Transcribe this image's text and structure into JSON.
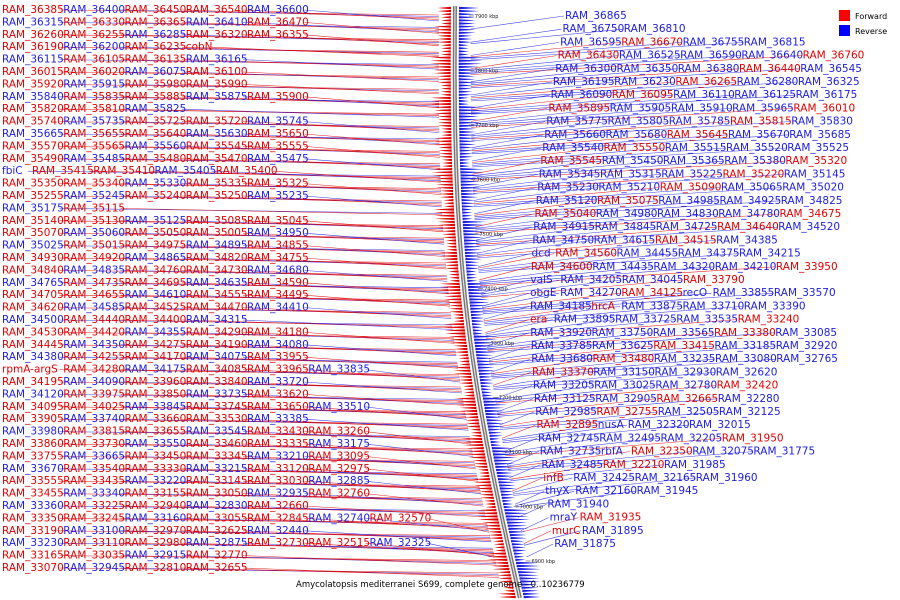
{
  "legend": {
    "items": [
      {
        "label": "Forward",
        "color": "#ff0000"
      },
      {
        "label": "Reverse",
        "color": "#0000ff"
      }
    ]
  },
  "caption": "Amycolatopsis mediterranei S699, complete genome - 0..10236779",
  "colors": {
    "forward": "#e00000",
    "reverse": "#2020e0",
    "backbone": "#777777",
    "background": "#ffffff"
  },
  "scale": {
    "ticks": [
      "7900 kbp",
      "7800 kbp",
      "7700 kbp",
      "7600 kbp",
      "7500 kbp",
      "7400 kbp",
      "7300 kbp",
      "7200 kbp",
      "7100 kbp",
      "7000 kbp",
      "6900 kbp"
    ]
  },
  "left_labels": [
    [
      "RAM_36385",
      "RAM_36400",
      "RAM_36450",
      "RAM_36540",
      "RAM_36600"
    ],
    [
      "RAM_36315",
      "RAM_36330",
      "RAM_36365",
      "RAM_36410",
      "RAM_36470"
    ],
    [
      "RAM_36260",
      "RAM_36255",
      "RAM_36285",
      "RAM_36320",
      "RAM_36355"
    ],
    [
      "RAM_36190",
      "RAM_36200",
      "RAM_36235",
      "cobN"
    ],
    [
      "RAM_36115",
      "RAM_36105",
      "RAM_36135",
      "RAM_36165"
    ],
    [
      "RAM_36015",
      "RAM_36020",
      "RAM_36075",
      "RAM_36100"
    ],
    [
      "RAM_35920",
      "RAM_35915",
      "RAM_35980",
      "RAM_35990"
    ],
    [
      "RAM_35840",
      "RAM_35835",
      "RAM_35885",
      "RAM_35875",
      "RAM_35900"
    ],
    [
      "RAM_35820",
      "RAM_35810",
      "RAM_35825"
    ],
    [
      "RAM_35740",
      "RAM_35735",
      "RAM_35725",
      "RAM_35720",
      "RAM_35745"
    ],
    [
      "RAM_35665",
      "RAM_35655",
      "RAM_35640",
      "RAM_35630",
      "RAM_35650"
    ],
    [
      "RAM_35570",
      "RAM_35565",
      "RAM_35560",
      "RAM_35545",
      "RAM_35555"
    ],
    [
      "RAM_35490",
      "RAM_35485",
      "RAM_35480",
      "RAM_35470",
      "RAM_35475"
    ],
    [
      "fbiC",
      "RAM_35415",
      "RAM_35410",
      "RAM_35405",
      "RAM_35400"
    ],
    [
      "RAM_35350",
      "RAM_35340",
      "RAM_35330",
      "RAM_35335",
      "RAM_35325"
    ],
    [
      "RAM_35255",
      "RAM_35245",
      "RAM_35240",
      "RAM_35250",
      "RAM_35235"
    ],
    [
      "RAM_35175",
      "RAM_35115"
    ],
    [
      "RAM_35140",
      "RAM_35130",
      "RAM_35125",
      "RAM_35085",
      "RAM_35045"
    ],
    [
      "RAM_35070",
      "RAM_35060",
      "RAM_35050",
      "RAM_35005",
      "RAM_34950"
    ],
    [
      "RAM_35025",
      "RAM_35015",
      "RAM_34975",
      "RAM_34895",
      "RAM_34855"
    ],
    [
      "RAM_34930",
      "RAM_34920",
      "RAM_34865",
      "RAM_34820",
      "RAM_34755"
    ],
    [
      "RAM_34840",
      "RAM_34835",
      "RAM_34760",
      "RAM_34730",
      "RAM_34680"
    ],
    [
      "RAM_34765",
      "RAM_34735",
      "RAM_34695",
      "RAM_34635",
      "RAM_34590"
    ],
    [
      "RAM_34705",
      "RAM_34655",
      "RAM_34610",
      "RAM_34555",
      "RAM_34495"
    ],
    [
      "RAM_34620",
      "RAM_34585",
      "RAM_34525",
      "RAM_34470",
      "RAM_34410"
    ],
    [
      "RAM_34500",
      "RAM_34440",
      "RAM_34400",
      "RAM_34315"
    ],
    [
      "RAM_34530",
      "RAM_34420",
      "RAM_34355",
      "RAM_34290",
      "RAM_34180"
    ],
    [
      "RAM_34445",
      "RAM_34350",
      "RAM_34275",
      "RAM_34190",
      "RAM_34080"
    ],
    [
      "RAM_34380",
      "RAM_34255",
      "RAM_34170",
      "RAM_34075",
      "RAM_33955"
    ],
    [
      "rpmA-argS",
      "RAM_34280",
      "RAM_34175",
      "RAM_34085",
      "RAM_33965",
      "RAM_33835"
    ],
    [
      "RAM_34195",
      "RAM_34090",
      "RAM_33960",
      "RAM_33840",
      "RAM_33720"
    ],
    [
      "RAM_34120",
      "RAM_33975",
      "RAM_33850",
      "RAM_33735",
      "RAM_33620"
    ],
    [
      "RAM_34095",
      "RAM_34025",
      "RAM_33845",
      "RAM_33745",
      "RAM_33650",
      "RAM_33510"
    ],
    [
      "RAM_33905",
      "RAM_33740",
      "RAM_33660",
      "RAM_33530",
      "RAM_33385"
    ],
    [
      "RAM_33980",
      "RAM_33815",
      "RAM_33655",
      "RAM_33545",
      "RAM_33430",
      "RAM_33260"
    ],
    [
      "RAM_33860",
      "RAM_33730",
      "RAM_33550",
      "RAM_33460",
      "RAM_33335",
      "RAM_33175"
    ],
    [
      "RAM_33755",
      "RAM_33665",
      "RAM_33450",
      "RAM_33345",
      "RAM_33210",
      "RAM_33095"
    ],
    [
      "RAM_33670",
      "RAM_33540",
      "RAM_33330",
      "RAM_33215",
      "RAM_33120",
      "RAM_32975"
    ],
    [
      "RAM_33555",
      "RAM_33435",
      "RAM_33220",
      "RAM_33145",
      "RAM_33030",
      "RAM_32885"
    ],
    [
      "RAM_33455",
      "RAM_33340",
      "RAM_33155",
      "RAM_33050",
      "RAM_32935",
      "RAM_32760"
    ],
    [
      "RAM_33360",
      "RAM_33225",
      "RAM_32940",
      "RAM_32830",
      "RAM_32660"
    ],
    [
      "RAM_33350",
      "RAM_33245",
      "RAM_33160",
      "RAM_33055",
      "RAM_32845",
      "RAM_32740",
      "RAM_32570"
    ],
    [
      "RAM_33190",
      "RAM_33100",
      "RAM_32970",
      "RAM_32625",
      "RAM_32440"
    ],
    [
      "RAM_33230",
      "RAM_33110",
      "RAM_32980",
      "RAM_32875",
      "RAM_32730",
      "RAM_32515",
      "RAM_32325"
    ],
    [
      "RAM_33165",
      "RAM_33035",
      "RAM_32915",
      "RAM_32770"
    ],
    [
      "RAM_33070",
      "RAM_32945",
      "RAM_32810",
      "RAM_32655"
    ]
  ],
  "right_labels": [
    [
      "RAM_36865"
    ],
    [
      "RAM_36750",
      "RAM_36810"
    ],
    [
      "RAM_36595",
      "RAM_36670",
      "RAM_36755",
      "RAM_36815"
    ],
    [
      "RAM_36430",
      "RAM_36525",
      "RAM_36590",
      "RAM_36640",
      "RAM_36760"
    ],
    [
      "RAM_36300",
      "RAM_36350",
      "RAM_36380",
      "RAM_36440",
      "RAM_36545"
    ],
    [
      "RAM_36195",
      "RAM_36230",
      "RAM_36265",
      "RAM_36280",
      "RAM_36325"
    ],
    [
      "RAM_36090",
      "RAM_36095",
      "RAM_36110",
      "RAM_36125",
      "RAM_36175"
    ],
    [
      "RAM_35895",
      "RAM_35905",
      "RAM_35910",
      "RAM_35965",
      "RAM_36010"
    ],
    [
      "RAM_35775",
      "RAM_35805",
      "RAM_35785",
      "RAM_35815",
      "RAM_35830"
    ],
    [
      "RAM_35660",
      "RAM_35680",
      "RAM_35645",
      "RAM_35670",
      "RAM_35685"
    ],
    [
      "RAM_35540",
      "RAM_35550",
      "RAM_35515",
      "RAM_35520",
      "RAM_35525"
    ],
    [
      "RAM_35545",
      "RAM_35450",
      "RAM_35365",
      "RAM_35380",
      "RAM_35320"
    ],
    [
      "RAM_35345",
      "RAM_35315",
      "RAM_35225",
      "RAM_35220",
      "RAM_35145"
    ],
    [
      "RAM_35230",
      "RAM_35210",
      "RAM_35090",
      "RAM_35065",
      "RAM_35020"
    ],
    [
      "RAM_35120",
      "RAM_35075",
      "RAM_34985",
      "RAM_34925",
      "RAM_34825"
    ],
    [
      "RAM_35040",
      "RAM_34980",
      "RAM_34830",
      "RAM_34780",
      "RAM_34675"
    ],
    [
      "RAM_34915",
      "RAM_34845",
      "RAM_34725",
      "RAM_34640",
      "RAM_34520"
    ],
    [
      "RAM_34750",
      "RAM_34615",
      "RAM_34515",
      "RAM_34385"
    ],
    [
      "dcd",
      "RAM_34560",
      "RAM_34455",
      "RAM_34375",
      "RAM_34215"
    ],
    [
      "RAM_34600",
      "RAM_34435",
      "RAM_34320",
      "RAM_34210",
      "RAM_33950"
    ],
    [
      "valS",
      "RAM_34205",
      "RAM_34045",
      "RAM_33790"
    ],
    [
      "obgE",
      "RAM_34270",
      "RAM_34125",
      "recO",
      "RAM_33855",
      "RAM_33570"
    ],
    [
      "RAM_34185",
      "hrcA",
      "RAM_33875",
      "RAM_33710",
      "RAM_33390"
    ],
    [
      "era",
      "RAM_33895",
      "RAM_33725",
      "RAM_33535",
      "RAM_33240"
    ],
    [
      "RAM_33920",
      "RAM_33750",
      "RAM_33565",
      "RAM_33380",
      "RAM_33085"
    ],
    [
      "RAM_33785",
      "RAM_33625",
      "RAM_33415",
      "RAM_33185",
      "RAM_32920"
    ],
    [
      "RAM_33680",
      "RAM_33480",
      "RAM_33235",
      "RAM_33080",
      "RAM_32765"
    ],
    [
      "RAM_33370",
      "RAM_33150",
      "RAM_32930",
      "RAM_32620"
    ],
    [
      "RAM_33205",
      "RAM_33025",
      "RAM_32780",
      "RAM_32420"
    ],
    [
      "RAM_33125",
      "RAM_32905",
      "RAM_32665",
      "RAM_32280"
    ],
    [
      "RAM_32985",
      "RAM_32755",
      "RAM_32505",
      "RAM_32125"
    ],
    [
      "RAM_32895",
      "nusA",
      "RAM_32320",
      "RAM_32015"
    ],
    [
      "RAM_32745",
      "RAM_32495",
      "RAM_32205",
      "RAM_31950"
    ],
    [
      "RAM_32735",
      "rbfA",
      "RAM_32350",
      "RAM_32075",
      "RAM_31775"
    ],
    [
      "RAM_32485",
      "RAM_32210",
      "RAM_31985"
    ],
    [
      "infB",
      "RAM_32425",
      "RAM_32165",
      "RAM_31960"
    ],
    [
      "thyX",
      "RAM_32160",
      "RAM_31945"
    ],
    [
      "RAM_31940"
    ],
    [
      "mraY",
      "RAM_31935"
    ],
    [
      "murC",
      "RAM_31895"
    ],
    [
      "RAM_31875"
    ]
  ]
}
